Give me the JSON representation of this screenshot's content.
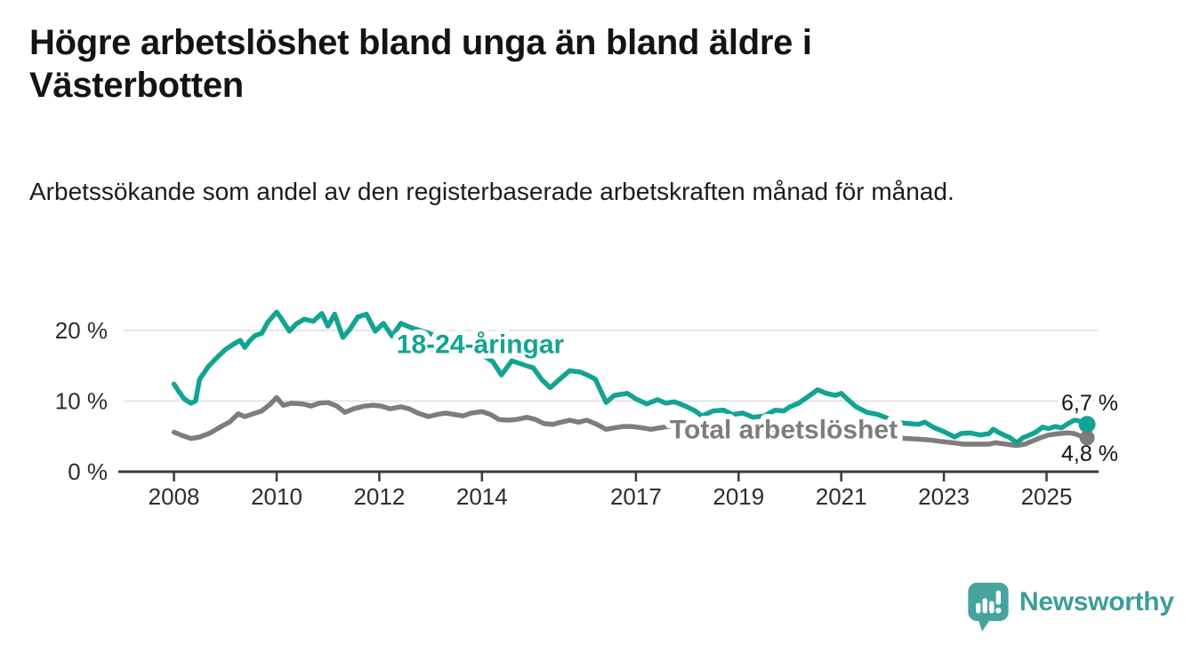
{
  "chart_data": {
    "type": "line",
    "title": "Högre arbetslöshet bland unga än bland äldre i Västerbotten",
    "subtitle": "Arbetssökande som andel av den registerbaserade arbetskraften månad för månad.",
    "xlabel": "",
    "ylabel": "",
    "x_ticks": [
      2008,
      2010,
      2012,
      2014,
      2017,
      2019,
      2021,
      2023,
      2025
    ],
    "y_ticks": [
      {
        "value": 0,
        "label": "0 %"
      },
      {
        "value": 10,
        "label": "10 %"
      },
      {
        "value": 20,
        "label": "20 %"
      }
    ],
    "xlim": [
      2007.9,
      2026.3
    ],
    "ylim": [
      0,
      25.3
    ],
    "grid": "horizontal-only",
    "legend": "inline-labels-on-lines",
    "series": [
      {
        "id": "youth",
        "name": "18-24-åringar",
        "color": "#12a492",
        "end_label": "6,7 %",
        "end_value": 6.7,
        "x": [
          2008.0,
          2008.1,
          2008.2,
          2008.33,
          2008.42,
          2008.5,
          2008.67,
          2008.83,
          2009.0,
          2009.17,
          2009.29,
          2009.38,
          2009.46,
          2009.58,
          2009.71,
          2009.83,
          2010.0,
          2010.08,
          2010.25,
          2010.38,
          2010.54,
          2010.71,
          2010.88,
          2011.0,
          2011.13,
          2011.29,
          2011.42,
          2011.58,
          2011.75,
          2011.92,
          2012.08,
          2012.25,
          2012.42,
          2012.58,
          2012.75,
          2012.92,
          2013.08,
          2013.25,
          2013.42,
          2013.58,
          2013.75,
          2013.92,
          2014.08,
          2014.21,
          2014.38,
          2014.58,
          2014.79,
          2015.0,
          2015.17,
          2015.33,
          2015.5,
          2015.71,
          2015.92,
          2016.08,
          2016.21,
          2016.42,
          2016.58,
          2016.83,
          2017.0,
          2017.21,
          2017.42,
          2017.58,
          2017.75,
          2017.96,
          2018.13,
          2018.29,
          2018.5,
          2018.71,
          2018.88,
          2019.08,
          2019.29,
          2019.5,
          2019.71,
          2019.88,
          2020.0,
          2020.17,
          2020.33,
          2020.54,
          2020.71,
          2020.88,
          2021.0,
          2021.13,
          2021.29,
          2021.5,
          2021.71,
          2021.96,
          2022.17,
          2022.33,
          2022.5,
          2022.63,
          2022.79,
          2022.96,
          2023.13,
          2023.21,
          2023.33,
          2023.5,
          2023.71,
          2023.88,
          2023.96,
          2024.08,
          2024.17,
          2024.29,
          2024.42,
          2024.54,
          2024.67,
          2024.79,
          2024.92,
          2025.04,
          2025.17,
          2025.29,
          2025.42,
          2025.54,
          2025.63,
          2025.71,
          2025.79
        ],
        "values": [
          12.4,
          11.3,
          10.3,
          9.7,
          10.0,
          13.1,
          14.9,
          16.1,
          17.3,
          18.1,
          18.6,
          17.6,
          18.4,
          19.3,
          19.6,
          21.2,
          22.6,
          21.8,
          19.9,
          20.9,
          21.6,
          21.3,
          22.4,
          20.6,
          22.3,
          19.0,
          20.1,
          21.9,
          22.3,
          19.9,
          21.0,
          19.2,
          21.0,
          20.5,
          20.1,
          19.7,
          19.3,
          19.0,
          18.8,
          18.5,
          18.2,
          17.0,
          16.2,
          15.6,
          13.7,
          15.7,
          15.2,
          14.7,
          13.0,
          11.9,
          13.0,
          14.3,
          14.1,
          13.6,
          13.1,
          9.8,
          10.8,
          11.1,
          10.3,
          9.6,
          10.2,
          9.7,
          9.9,
          9.3,
          8.7,
          7.9,
          8.6,
          8.7,
          8.1,
          8.3,
          7.7,
          7.9,
          8.7,
          8.6,
          9.2,
          9.7,
          10.5,
          11.6,
          11.1,
          10.8,
          11.1,
          10.2,
          9.2,
          8.4,
          8.1,
          7.4,
          6.9,
          6.8,
          6.7,
          7.0,
          6.3,
          5.8,
          5.2,
          4.9,
          5.4,
          5.5,
          5.2,
          5.4,
          6.0,
          5.5,
          5.2,
          4.8,
          4.1,
          4.8,
          5.2,
          5.6,
          6.3,
          6.1,
          6.4,
          6.2,
          6.8,
          7.3,
          7.2,
          6.8,
          6.7
        ]
      },
      {
        "id": "total",
        "name": "Total arbetslöshet",
        "color": "#7d7d7d",
        "end_label": "4,8 %",
        "end_value": 4.8,
        "x": [
          2008.0,
          2008.17,
          2008.33,
          2008.5,
          2008.71,
          2008.92,
          2009.08,
          2009.25,
          2009.38,
          2009.54,
          2009.71,
          2009.88,
          2010.0,
          2010.13,
          2010.29,
          2010.5,
          2010.67,
          2010.83,
          2011.0,
          2011.17,
          2011.33,
          2011.5,
          2011.71,
          2011.88,
          2012.04,
          2012.21,
          2012.42,
          2012.58,
          2012.75,
          2012.96,
          2013.13,
          2013.29,
          2013.46,
          2013.63,
          2013.79,
          2014.0,
          2014.17,
          2014.33,
          2014.5,
          2014.67,
          2014.88,
          2015.04,
          2015.21,
          2015.38,
          2015.54,
          2015.71,
          2015.88,
          2016.04,
          2016.21,
          2016.42,
          2016.58,
          2016.75,
          2016.92,
          2017.13,
          2017.29,
          2017.46,
          2017.63,
          2017.83,
          2018.08,
          2018.33,
          2018.58,
          2018.83,
          2019.08,
          2019.33,
          2019.58,
          2019.83,
          2020.0,
          2020.25,
          2020.5,
          2020.75,
          2021.0,
          2021.25,
          2021.5,
          2021.75,
          2022.0,
          2022.25,
          2022.5,
          2022.71,
          2022.92,
          2023.17,
          2023.38,
          2023.63,
          2023.88,
          2024.0,
          2024.21,
          2024.42,
          2024.58,
          2024.71,
          2024.88,
          2025.04,
          2025.25,
          2025.42,
          2025.54,
          2025.71,
          2025.79
        ],
        "values": [
          5.6,
          5.1,
          4.7,
          4.9,
          5.5,
          6.4,
          7.0,
          8.2,
          7.8,
          8.2,
          8.6,
          9.6,
          10.5,
          9.4,
          9.7,
          9.6,
          9.3,
          9.7,
          9.8,
          9.3,
          8.4,
          8.9,
          9.3,
          9.4,
          9.3,
          8.9,
          9.2,
          8.9,
          8.3,
          7.8,
          8.1,
          8.3,
          8.1,
          7.9,
          8.3,
          8.5,
          8.1,
          7.4,
          7.3,
          7.4,
          7.7,
          7.4,
          6.8,
          6.7,
          7.0,
          7.3,
          7.0,
          7.3,
          6.8,
          6.0,
          6.2,
          6.4,
          6.4,
          6.2,
          6.0,
          6.2,
          6.4,
          6.3,
          6.1,
          5.9,
          5.7,
          5.5,
          5.4,
          5.3,
          5.4,
          5.6,
          5.9,
          6.6,
          7.0,
          6.8,
          6.4,
          6.1,
          5.7,
          5.3,
          5.0,
          4.7,
          4.6,
          4.5,
          4.3,
          4.1,
          3.9,
          3.9,
          3.9,
          4.1,
          3.9,
          3.7,
          3.9,
          4.3,
          4.8,
          5.2,
          5.4,
          5.5,
          5.4,
          4.9,
          4.8
        ]
      }
    ]
  },
  "branding": {
    "logo_text": "Newsworthy",
    "logo_icon": "speech-bubble-bar-chart-icon",
    "color": "#3d9e99",
    "icon_color": "#47a39d"
  },
  "colors": {
    "grid": "#dedede",
    "axis": "#3a3a3a",
    "tick_text": "#2d2d2d",
    "title_text": "#141414"
  }
}
